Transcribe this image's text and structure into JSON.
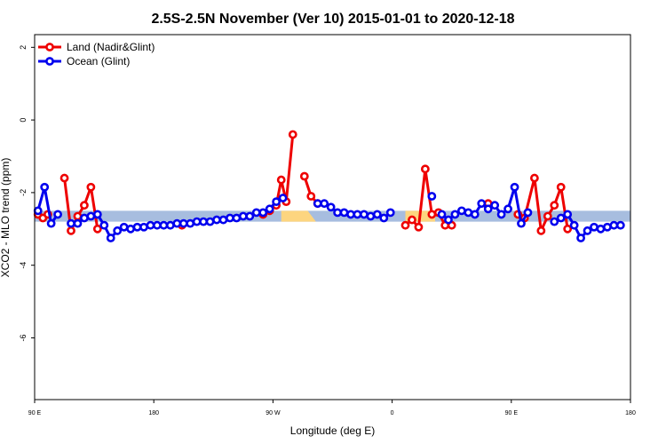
{
  "chart_data": {
    "type": "line",
    "title": "2.5S-2.5N November (Ver 10)   2015-01-01 to 2020-12-18",
    "xlabel": "Longitude (deg E)",
    "ylabel": "XCO2 - MLO trend (ppm)",
    "xlim": [
      90,
      450
    ],
    "ylim": [
      -7.7,
      2.35
    ],
    "x_ticks": [
      {
        "value": 90,
        "label": "90 E"
      },
      {
        "value": 162,
        "label": "180"
      },
      {
        "value": 234,
        "label": "90 W"
      },
      {
        "value": 306,
        "label": "0"
      },
      {
        "value": 378,
        "label": "90 E"
      },
      {
        "value": 450,
        "label": "180"
      }
    ],
    "y_ticks": [
      {
        "value": 2,
        "label": "2"
      },
      {
        "value": 0,
        "label": "0"
      },
      {
        "value": -2,
        "label": "-2"
      },
      {
        "value": -4,
        "label": "-4"
      },
      {
        "value": -6,
        "label": "-6"
      }
    ],
    "grid": false,
    "legend_position": "top-left",
    "bands": [
      {
        "name": "ocean",
        "color": "#a7bddf",
        "segments": [
          [
            [
              90,
              -2.5
            ],
            [
              450,
              -2.5
            ],
            [
              450,
              -2.8
            ],
            [
              90,
              -2.8
            ]
          ]
        ]
      },
      {
        "name": "land",
        "color": "#fdd57f",
        "segments": [
          [
            [
              239,
              -2.5
            ],
            [
              255,
              -2.5
            ],
            [
              260,
              -2.8
            ],
            [
              239,
              -2.8
            ]
          ],
          [
            [
              314,
              -2.5
            ],
            [
              332,
              -2.5
            ],
            [
              332,
              -2.8
            ],
            [
              314,
              -2.8
            ]
          ]
        ]
      }
    ],
    "series": [
      {
        "name": "Land (Nadir&Glint)",
        "color": "#ee0000",
        "segments": [
          [
            [
              92,
              -2.6
            ],
            [
              95,
              -2.7
            ],
            [
              98,
              -2.6
            ]
          ],
          [
            [
              108,
              -1.6
            ],
            [
              112,
              -3.05
            ],
            [
              116,
              -2.65
            ],
            [
              120,
              -2.35
            ],
            [
              124,
              -1.85
            ],
            [
              128,
              -3.0
            ]
          ],
          [
            [
              179,
              -2.9
            ]
          ],
          [
            [
              228,
              -2.6
            ],
            [
              232,
              -2.5
            ],
            [
              236,
              -2.35
            ],
            [
              239,
              -1.65
            ],
            [
              242,
              -2.25
            ],
            [
              246,
              -0.4
            ]
          ],
          [
            [
              253,
              -1.55
            ],
            [
              257,
              -2.1
            ],
            [
              261,
              -2.3
            ]
          ],
          [
            [
              314,
              -2.9
            ],
            [
              318,
              -2.75
            ],
            [
              322,
              -2.95
            ],
            [
              326,
              -1.35
            ],
            [
              330,
              -2.6
            ],
            [
              334,
              -2.55
            ],
            [
              338,
              -2.9
            ],
            [
              342,
              -2.9
            ]
          ],
          [
            [
              364,
              -2.3
            ]
          ],
          [
            [
              382,
              -2.6
            ],
            [
              386,
              -2.7
            ],
            [
              392,
              -1.6
            ],
            [
              396,
              -3.05
            ],
            [
              400,
              -2.65
            ],
            [
              404,
              -2.35
            ],
            [
              408,
              -1.85
            ],
            [
              412,
              -3.0
            ]
          ]
        ]
      },
      {
        "name": "Ocean (Glint)",
        "color": "#0000ee",
        "segments": [
          [
            [
              92,
              -2.5
            ],
            [
              96,
              -1.85
            ],
            [
              100,
              -2.85
            ],
            [
              104,
              -2.6
            ]
          ],
          [
            [
              112,
              -2.85
            ],
            [
              116,
              -2.85
            ],
            [
              120,
              -2.7
            ],
            [
              124,
              -2.65
            ],
            [
              128,
              -2.6
            ],
            [
              132,
              -2.9
            ],
            [
              136,
              -3.25
            ],
            [
              140,
              -3.05
            ],
            [
              144,
              -2.95
            ],
            [
              148,
              -3.0
            ],
            [
              152,
              -2.95
            ],
            [
              156,
              -2.95
            ],
            [
              160,
              -2.9
            ],
            [
              164,
              -2.9
            ],
            [
              168,
              -2.9
            ],
            [
              172,
              -2.9
            ],
            [
              176,
              -2.85
            ],
            [
              180,
              -2.85
            ],
            [
              184,
              -2.85
            ],
            [
              188,
              -2.8
            ],
            [
              192,
              -2.8
            ],
            [
              196,
              -2.8
            ],
            [
              200,
              -2.75
            ],
            [
              204,
              -2.75
            ],
            [
              208,
              -2.7
            ],
            [
              212,
              -2.7
            ],
            [
              216,
              -2.65
            ],
            [
              220,
              -2.65
            ],
            [
              224,
              -2.55
            ],
            [
              228,
              -2.55
            ],
            [
              232,
              -2.45
            ],
            [
              236,
              -2.25
            ],
            [
              240,
              -2.15
            ]
          ],
          [
            [
              261,
              -2.3
            ],
            [
              265,
              -2.3
            ],
            [
              269,
              -2.4
            ],
            [
              273,
              -2.55
            ],
            [
              277,
              -2.55
            ],
            [
              281,
              -2.6
            ],
            [
              285,
              -2.6
            ],
            [
              289,
              -2.6
            ],
            [
              293,
              -2.65
            ],
            [
              297,
              -2.6
            ],
            [
              301,
              -2.7
            ],
            [
              305,
              -2.55
            ]
          ],
          [
            [
              330,
              -2.1
            ]
          ],
          [
            [
              336,
              -2.6
            ],
            [
              340,
              -2.75
            ],
            [
              344,
              -2.6
            ],
            [
              348,
              -2.5
            ],
            [
              352,
              -2.55
            ],
            [
              356,
              -2.6
            ],
            [
              360,
              -2.3
            ],
            [
              364,
              -2.45
            ],
            [
              368,
              -2.35
            ],
            [
              372,
              -2.6
            ],
            [
              376,
              -2.45
            ],
            [
              380,
              -1.85
            ],
            [
              384,
              -2.85
            ],
            [
              388,
              -2.55
            ]
          ],
          [
            [
              404,
              -2.8
            ],
            [
              408,
              -2.7
            ],
            [
              412,
              -2.6
            ],
            [
              416,
              -2.9
            ],
            [
              420,
              -3.25
            ],
            [
              424,
              -3.05
            ],
            [
              428,
              -2.95
            ],
            [
              432,
              -3.0
            ],
            [
              436,
              -2.95
            ],
            [
              440,
              -2.9
            ],
            [
              444,
              -2.9
            ]
          ]
        ]
      }
    ]
  }
}
